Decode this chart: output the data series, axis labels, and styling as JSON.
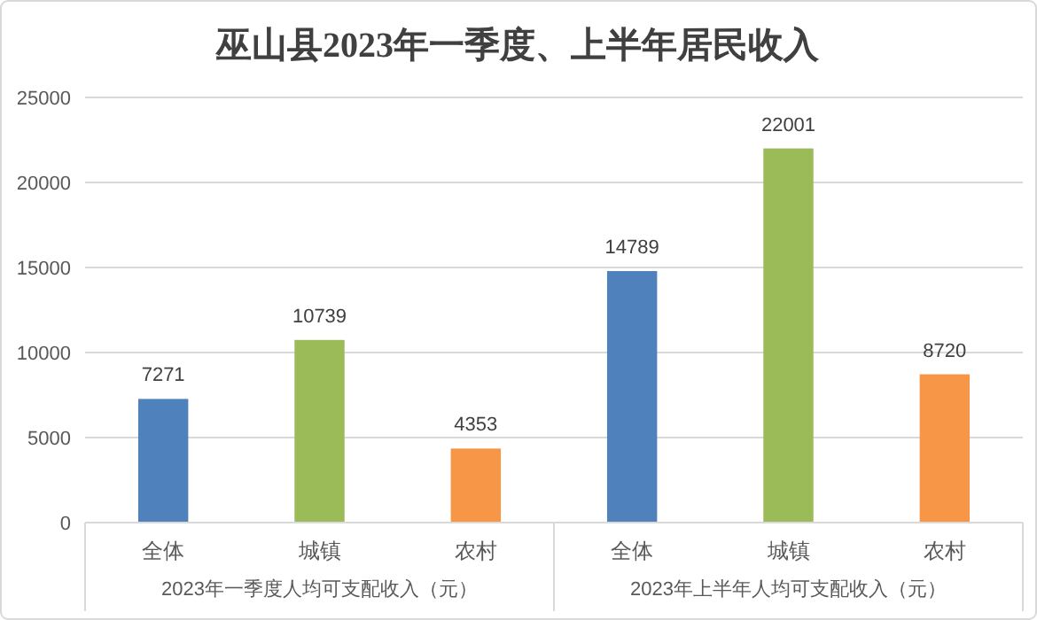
{
  "chart_data": {
    "type": "bar",
    "title": "巫山县2023年一季度、上半年居民收入",
    "categories": [
      "全体",
      "城镇",
      "农村",
      "全体",
      "城镇",
      "农村"
    ],
    "values": [
      7271,
      10739,
      4353,
      14789,
      22001,
      8720
    ],
    "colors": [
      "#4f81bd",
      "#9bbb59",
      "#f79646",
      "#4f81bd",
      "#9bbb59",
      "#f79646"
    ],
    "annotations": [
      "2023年一季度人均可支配收入（元）",
      "2023年上半年人均可支配收入（元）"
    ],
    "ylim": [
      0,
      25000
    ],
    "yticks": [
      0,
      5000,
      10000,
      15000,
      20000,
      25000
    ],
    "grid": "y",
    "data_labels": true
  }
}
